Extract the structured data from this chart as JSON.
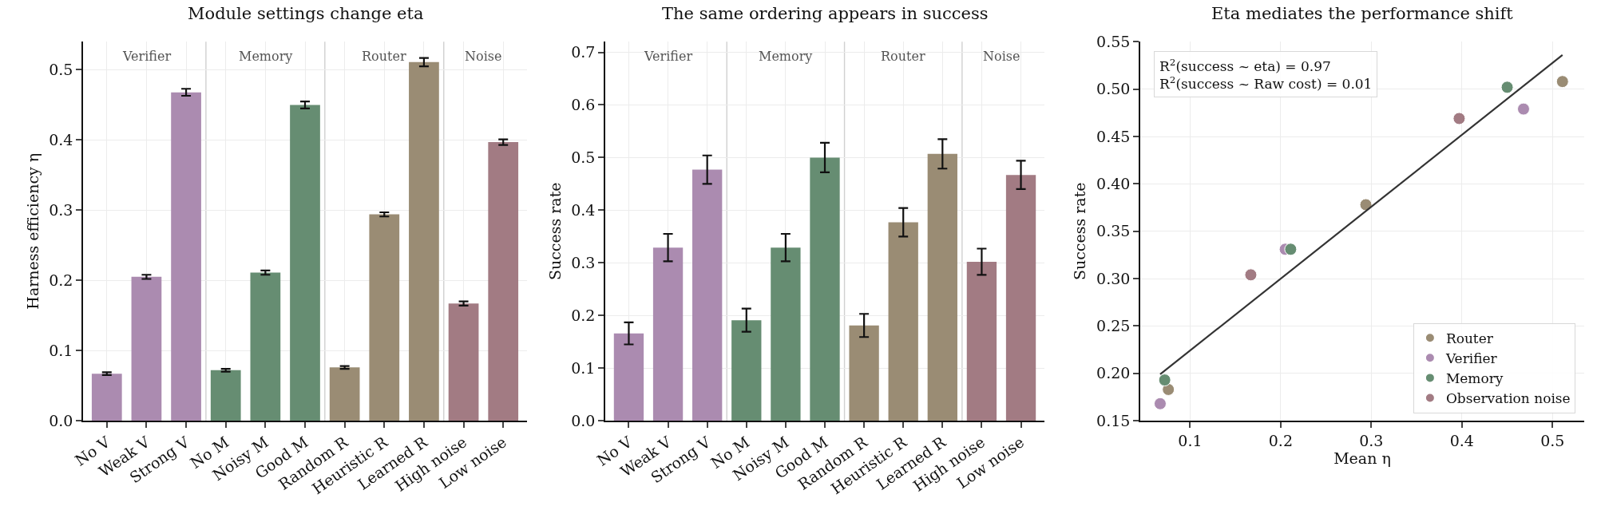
{
  "chart_data": [
    {
      "type": "bar",
      "title": "Module settings change eta",
      "ylabel": "Harness efficiency η",
      "categories": [
        "No V",
        "Weak V",
        "Strong V",
        "No M",
        "Noisy M",
        "Good M",
        "Random R",
        "Heuristic R",
        "Learned R",
        "High noise",
        "Low noise"
      ],
      "values": [
        0.067,
        0.205,
        0.468,
        0.072,
        0.211,
        0.45,
        0.076,
        0.294,
        0.511,
        0.167,
        0.397
      ],
      "errors": [
        0.002,
        0.003,
        0.005,
        0.002,
        0.003,
        0.005,
        0.002,
        0.003,
        0.006,
        0.003,
        0.004
      ],
      "colors": [
        "#ab8bb0",
        "#ab8bb0",
        "#ab8bb0",
        "#668d72",
        "#668d72",
        "#668d72",
        "#9a8c74",
        "#9a8c74",
        "#9a8c74",
        "#a27b83",
        "#a27b83"
      ],
      "ylim": [
        0,
        0.54
      ],
      "yticks": [
        {
          "value": 0,
          "label": "0.0"
        },
        0.1,
        0.2,
        0.3,
        0.4,
        0.5
      ],
      "annotations": [
        "Verifier",
        "Memory",
        "Router",
        "Noise"
      ],
      "grid": true,
      "legend": false
    },
    {
      "type": "bar",
      "title": "The same ordering appears in success",
      "ylabel": "Success rate",
      "categories": [
        "No V",
        "Weak V",
        "Strong V",
        "No M",
        "Noisy M",
        "Good M",
        "Random R",
        "Heuristic R",
        "Learned R",
        "High noise",
        "Low noise"
      ],
      "values": [
        0.166,
        0.329,
        0.477,
        0.191,
        0.329,
        0.5,
        0.181,
        0.377,
        0.507,
        0.302,
        0.467
      ],
      "errors": [
        0.021,
        0.026,
        0.027,
        0.022,
        0.026,
        0.028,
        0.022,
        0.027,
        0.028,
        0.025,
        0.027
      ],
      "colors": [
        "#ab8bb0",
        "#ab8bb0",
        "#ab8bb0",
        "#668d72",
        "#668d72",
        "#668d72",
        "#9a8c74",
        "#9a8c74",
        "#9a8c74",
        "#a27b83",
        "#a27b83"
      ],
      "ylim": [
        0,
        0.72
      ],
      "yticks": [
        {
          "value": 0,
          "label": "0.0"
        },
        0.1,
        0.2,
        0.3,
        0.4,
        0.5,
        0.6,
        0.7
      ],
      "annotations": [
        "Verifier",
        "Memory",
        "Router",
        "Noise"
      ],
      "grid": true,
      "legend": false
    },
    {
      "type": "scatter",
      "title": "Eta mediates the performance shift",
      "xlabel": "Mean η",
      "ylabel": "Success rate",
      "series": [
        {
          "name": "Router",
          "color": "#9a8c74",
          "x": [
            0.076,
            0.294,
            0.511
          ],
          "values": [
            0.183,
            0.378,
            0.508
          ]
        },
        {
          "name": "Verifier",
          "color": "#ab8bb0",
          "x": [
            0.067,
            0.205,
            0.468
          ],
          "values": [
            0.168,
            0.331,
            0.479
          ]
        },
        {
          "name": "Memory",
          "color": "#668d72",
          "x": [
            0.072,
            0.211,
            0.45
          ],
          "values": [
            0.193,
            0.331,
            0.502
          ]
        },
        {
          "name": "Observation noise",
          "color": "#a27b83",
          "x": [
            0.167,
            0.397
          ],
          "values": [
            0.304,
            0.469
          ]
        },
        {
          "type": "line",
          "marker": "none",
          "color": "#333333",
          "x": [
            0.067,
            0.511
          ],
          "values": [
            0.199,
            0.536
          ]
        }
      ],
      "xlim": [
        0.045,
        0.535
      ],
      "xticks": [
        0.1,
        0.2,
        0.3,
        0.4,
        0.5
      ],
      "ylim": [
        0.15,
        0.55
      ],
      "yticks": [
        {
          "value": 0.15,
          "label": "0.15"
        },
        {
          "value": 0.2,
          "label": "0.20"
        },
        {
          "value": 0.25,
          "label": "0.25"
        },
        {
          "value": 0.3,
          "label": "0.30"
        },
        {
          "value": 0.35,
          "label": "0.35"
        },
        {
          "value": 0.4,
          "label": "0.40"
        },
        {
          "value": 0.45,
          "label": "0.45"
        },
        {
          "value": 0.5,
          "label": "0.50"
        },
        {
          "value": 0.55,
          "label": "0.55"
        }
      ],
      "annotations": [
        "R$^{2}$(success ~ eta) = 0.97",
        "R$^{2}$(success ~ Raw cost) = 0.01"
      ],
      "marker": "circle",
      "grid": true,
      "legend": "bottom right"
    }
  ]
}
